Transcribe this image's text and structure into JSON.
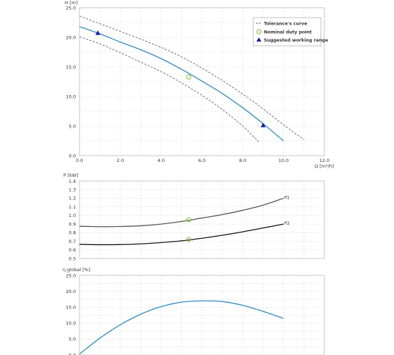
{
  "chart_data": [
    {
      "type": "line",
      "ylabel": "H [m]",
      "xlabel": "Q [m³/h]",
      "xlim": [
        0,
        12
      ],
      "ylim": [
        0,
        25
      ],
      "xticks": [
        0,
        2,
        4,
        6,
        8,
        10,
        12
      ],
      "xtick_labels": [
        "0.0",
        "2.0",
        "4.0",
        "6.0",
        "8.0",
        "10.0",
        "12.0"
      ],
      "yticks": [
        0,
        5,
        10,
        15,
        20,
        25
      ],
      "ytick_labels": [
        "0.0",
        "5.0",
        "10.0",
        "15.0",
        "20.0",
        "25.0"
      ],
      "grid": true,
      "legend": {
        "position": "top-right",
        "items": [
          {
            "label": "Tolerance's curve",
            "marker": "dashed-line"
          },
          {
            "label": "Nominal duty point",
            "marker": "circle",
            "color": "#8dc63f"
          },
          {
            "label": "Suggested working range",
            "marker": "triangle",
            "color": "#1a1aa6"
          }
        ]
      },
      "series": [
        {
          "role": "curve",
          "color": "#2e8bc0",
          "x": [
            0,
            1,
            2,
            3,
            4,
            5,
            6,
            7,
            8,
            9,
            10
          ],
          "y": [
            21.8,
            20.6,
            19.2,
            17.9,
            16.4,
            14.6,
            12.6,
            10.5,
            8.1,
            5.4,
            2.5
          ]
        },
        {
          "role": "tolerance-upper",
          "color": "#666666",
          "dash": true,
          "x": [
            0,
            1,
            2,
            3,
            4,
            5,
            6,
            7,
            8,
            9,
            10,
            11
          ],
          "y": [
            23.6,
            22.3,
            21.0,
            19.7,
            18.3,
            16.7,
            14.8,
            12.7,
            10.4,
            7.9,
            5.2,
            2.7
          ]
        },
        {
          "role": "tolerance-lower",
          "color": "#666666",
          "dash": true,
          "x": [
            0,
            1,
            2,
            3,
            4,
            5,
            6,
            7,
            8,
            8.8
          ],
          "y": [
            20.1,
            18.9,
            17.4,
            15.8,
            14.2,
            12.3,
            10.2,
            7.8,
            5.0,
            2.3
          ]
        }
      ],
      "nominal_point": {
        "x": 5.35,
        "y": 13.3,
        "color": "#8dc63f"
      },
      "working_range": [
        {
          "x": 0.9,
          "y": 20.7
        },
        {
          "x": 9.0,
          "y": 5.1
        }
      ]
    },
    {
      "type": "line",
      "ylabel": "P [kW]",
      "xlim": [
        0,
        12
      ],
      "ylim": [
        0.5,
        1.4
      ],
      "yticks": [
        0.5,
        0.6,
        0.7,
        0.8,
        0.9,
        1.0,
        1.1,
        1.2,
        1.3,
        1.4
      ],
      "ytick_labels": [
        "0.5",
        "0.6",
        "0.7",
        "0.8",
        "0.9",
        "1.0",
        "1.1",
        "1.2",
        "1.3",
        "1.4"
      ],
      "grid": true,
      "series": [
        {
          "name": "P1",
          "color": "#555555",
          "x": [
            0,
            1,
            2,
            3,
            4,
            5,
            6,
            7,
            8,
            9,
            10
          ],
          "y": [
            0.875,
            0.87,
            0.872,
            0.88,
            0.9,
            0.93,
            0.97,
            1.01,
            1.06,
            1.12,
            1.2
          ]
        },
        {
          "name": "P2",
          "color": "#111111",
          "x": [
            0,
            1,
            2,
            3,
            4,
            5,
            6,
            7,
            8,
            9,
            10
          ],
          "y": [
            0.665,
            0.66,
            0.662,
            0.67,
            0.685,
            0.705,
            0.735,
            0.77,
            0.81,
            0.855,
            0.9
          ]
        }
      ],
      "nominal_points": [
        {
          "x": 5.35,
          "y": 0.95
        },
        {
          "x": 5.35,
          "y": 0.72
        }
      ]
    },
    {
      "type": "line",
      "ylabel": "η global [%]",
      "xlim": [
        0,
        12
      ],
      "ylim": [
        0,
        25
      ],
      "yticks": [
        0,
        5,
        10,
        15,
        20,
        25
      ],
      "ytick_labels": [
        "0.0",
        "5.0",
        "10.0",
        "15.0",
        "20.0",
        "25.0"
      ],
      "grid": true,
      "series": [
        {
          "role": "efficiency",
          "color": "#2e8bc0",
          "x": [
            0,
            1,
            2,
            3,
            4,
            5,
            6,
            7,
            8,
            9,
            10
          ],
          "y": [
            0.3,
            5.3,
            9.5,
            12.8,
            15.2,
            16.6,
            17.0,
            16.8,
            15.6,
            13.7,
            11.5
          ]
        }
      ]
    }
  ]
}
